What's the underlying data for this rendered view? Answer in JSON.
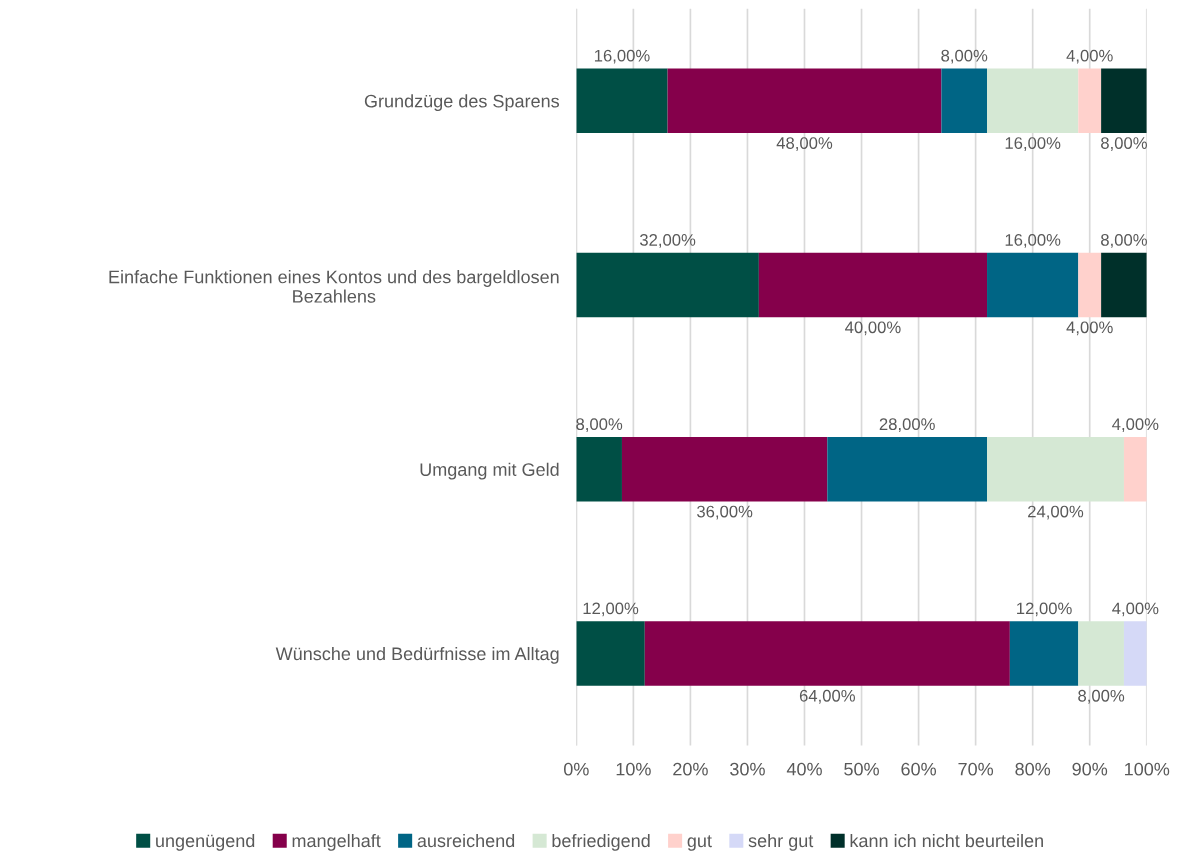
{
  "chart_data": {
    "type": "bar",
    "orientation": "horizontal",
    "stacked": true,
    "categories": [
      "Grundzüge des Sparens",
      "Einfache Funktionen eines Kontos und des bargeldlosen\nBezahlens",
      "Umgang mit Geld",
      "Wünsche und Bedürfnisse im Alltag"
    ],
    "series": [
      {
        "name": "ungenügend",
        "color": "#004f45",
        "values": [
          16,
          32,
          8,
          12
        ],
        "value_labels": [
          "16,00%",
          "32,00%",
          "8,00%",
          "12,00%"
        ]
      },
      {
        "name": "mangelhaft",
        "color": "#85004b",
        "values": [
          48,
          40,
          36,
          64
        ],
        "value_labels": [
          "48,00%",
          "40,00%",
          "36,00%",
          "64,00%"
        ]
      },
      {
        "name": "ausreichend",
        "color": "#006585",
        "values": [
          8,
          16,
          28,
          12
        ],
        "value_labels": [
          "8,00%",
          "16,00%",
          "28,00%",
          "12,00%"
        ]
      },
      {
        "name": "befriedigend",
        "color": "#d5e8d4",
        "values": [
          16,
          0,
          24,
          8
        ],
        "value_labels": [
          "16,00%",
          null,
          "24,00%",
          "8,00%"
        ]
      },
      {
        "name": "gut",
        "color": "#ffd1cc",
        "values": [
          4,
          4,
          4,
          0
        ],
        "value_labels": [
          "4,00%",
          "4,00%",
          "4,00%",
          null
        ]
      },
      {
        "name": "sehr gut",
        "color": "#d5d9f7",
        "values": [
          0,
          0,
          0,
          4
        ],
        "value_labels": [
          null,
          null,
          null,
          "4,00%"
        ]
      },
      {
        "name": "kann ich nicht beurteilen",
        "color": "#00302a",
        "values": [
          8,
          8,
          0,
          0
        ],
        "value_labels": [
          "8,00%",
          "8,00%",
          null,
          null
        ]
      }
    ],
    "xlim": [
      0,
      100
    ],
    "xticks": [
      {
        "value": 0,
        "label": "0%"
      },
      {
        "value": 10,
        "label": "10%"
      },
      {
        "value": 20,
        "label": "20%"
      },
      {
        "value": 30,
        "label": "30%"
      },
      {
        "value": 40,
        "label": "40%"
      },
      {
        "value": 50,
        "label": "50%"
      },
      {
        "value": 60,
        "label": "60%"
      },
      {
        "value": 70,
        "label": "70%"
      },
      {
        "value": 80,
        "label": "80%"
      },
      {
        "value": 90,
        "label": "90%"
      },
      {
        "value": 100,
        "label": "100%"
      }
    ],
    "grid": "x",
    "legend": "bottom"
  }
}
